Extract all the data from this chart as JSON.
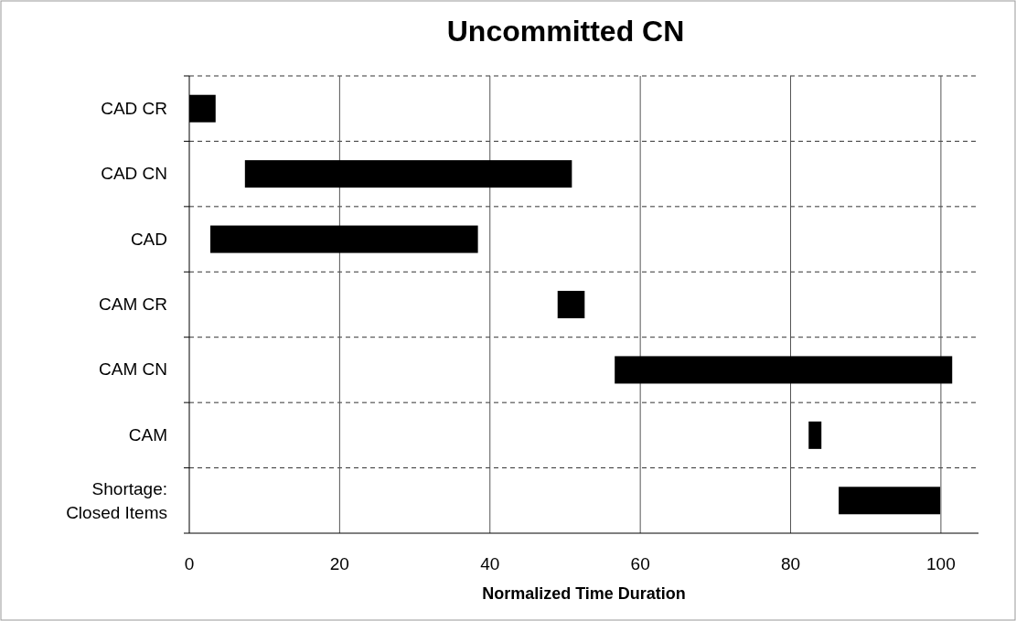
{
  "chart_data": {
    "type": "bar",
    "orientation": "horizontal",
    "title": "Uncommitted CN",
    "xlabel": "Normalized Time Duration",
    "categories": [
      "CAD CR",
      "CAD CN",
      "CAD",
      "CAM CR",
      "CAM CN",
      "CAM",
      "Shortage: Closed Items"
    ],
    "base": [
      0,
      7.4,
      2.8,
      49,
      56.6,
      82.4,
      86.4
    ],
    "values": [
      3.5,
      43.5,
      35.6,
      3.6,
      44.9,
      1.7,
      13.5
    ],
    "color": "#000000",
    "xlim": [
      0,
      105
    ],
    "xticks": [
      0,
      20,
      40,
      60,
      80,
      100
    ],
    "grid": true
  }
}
